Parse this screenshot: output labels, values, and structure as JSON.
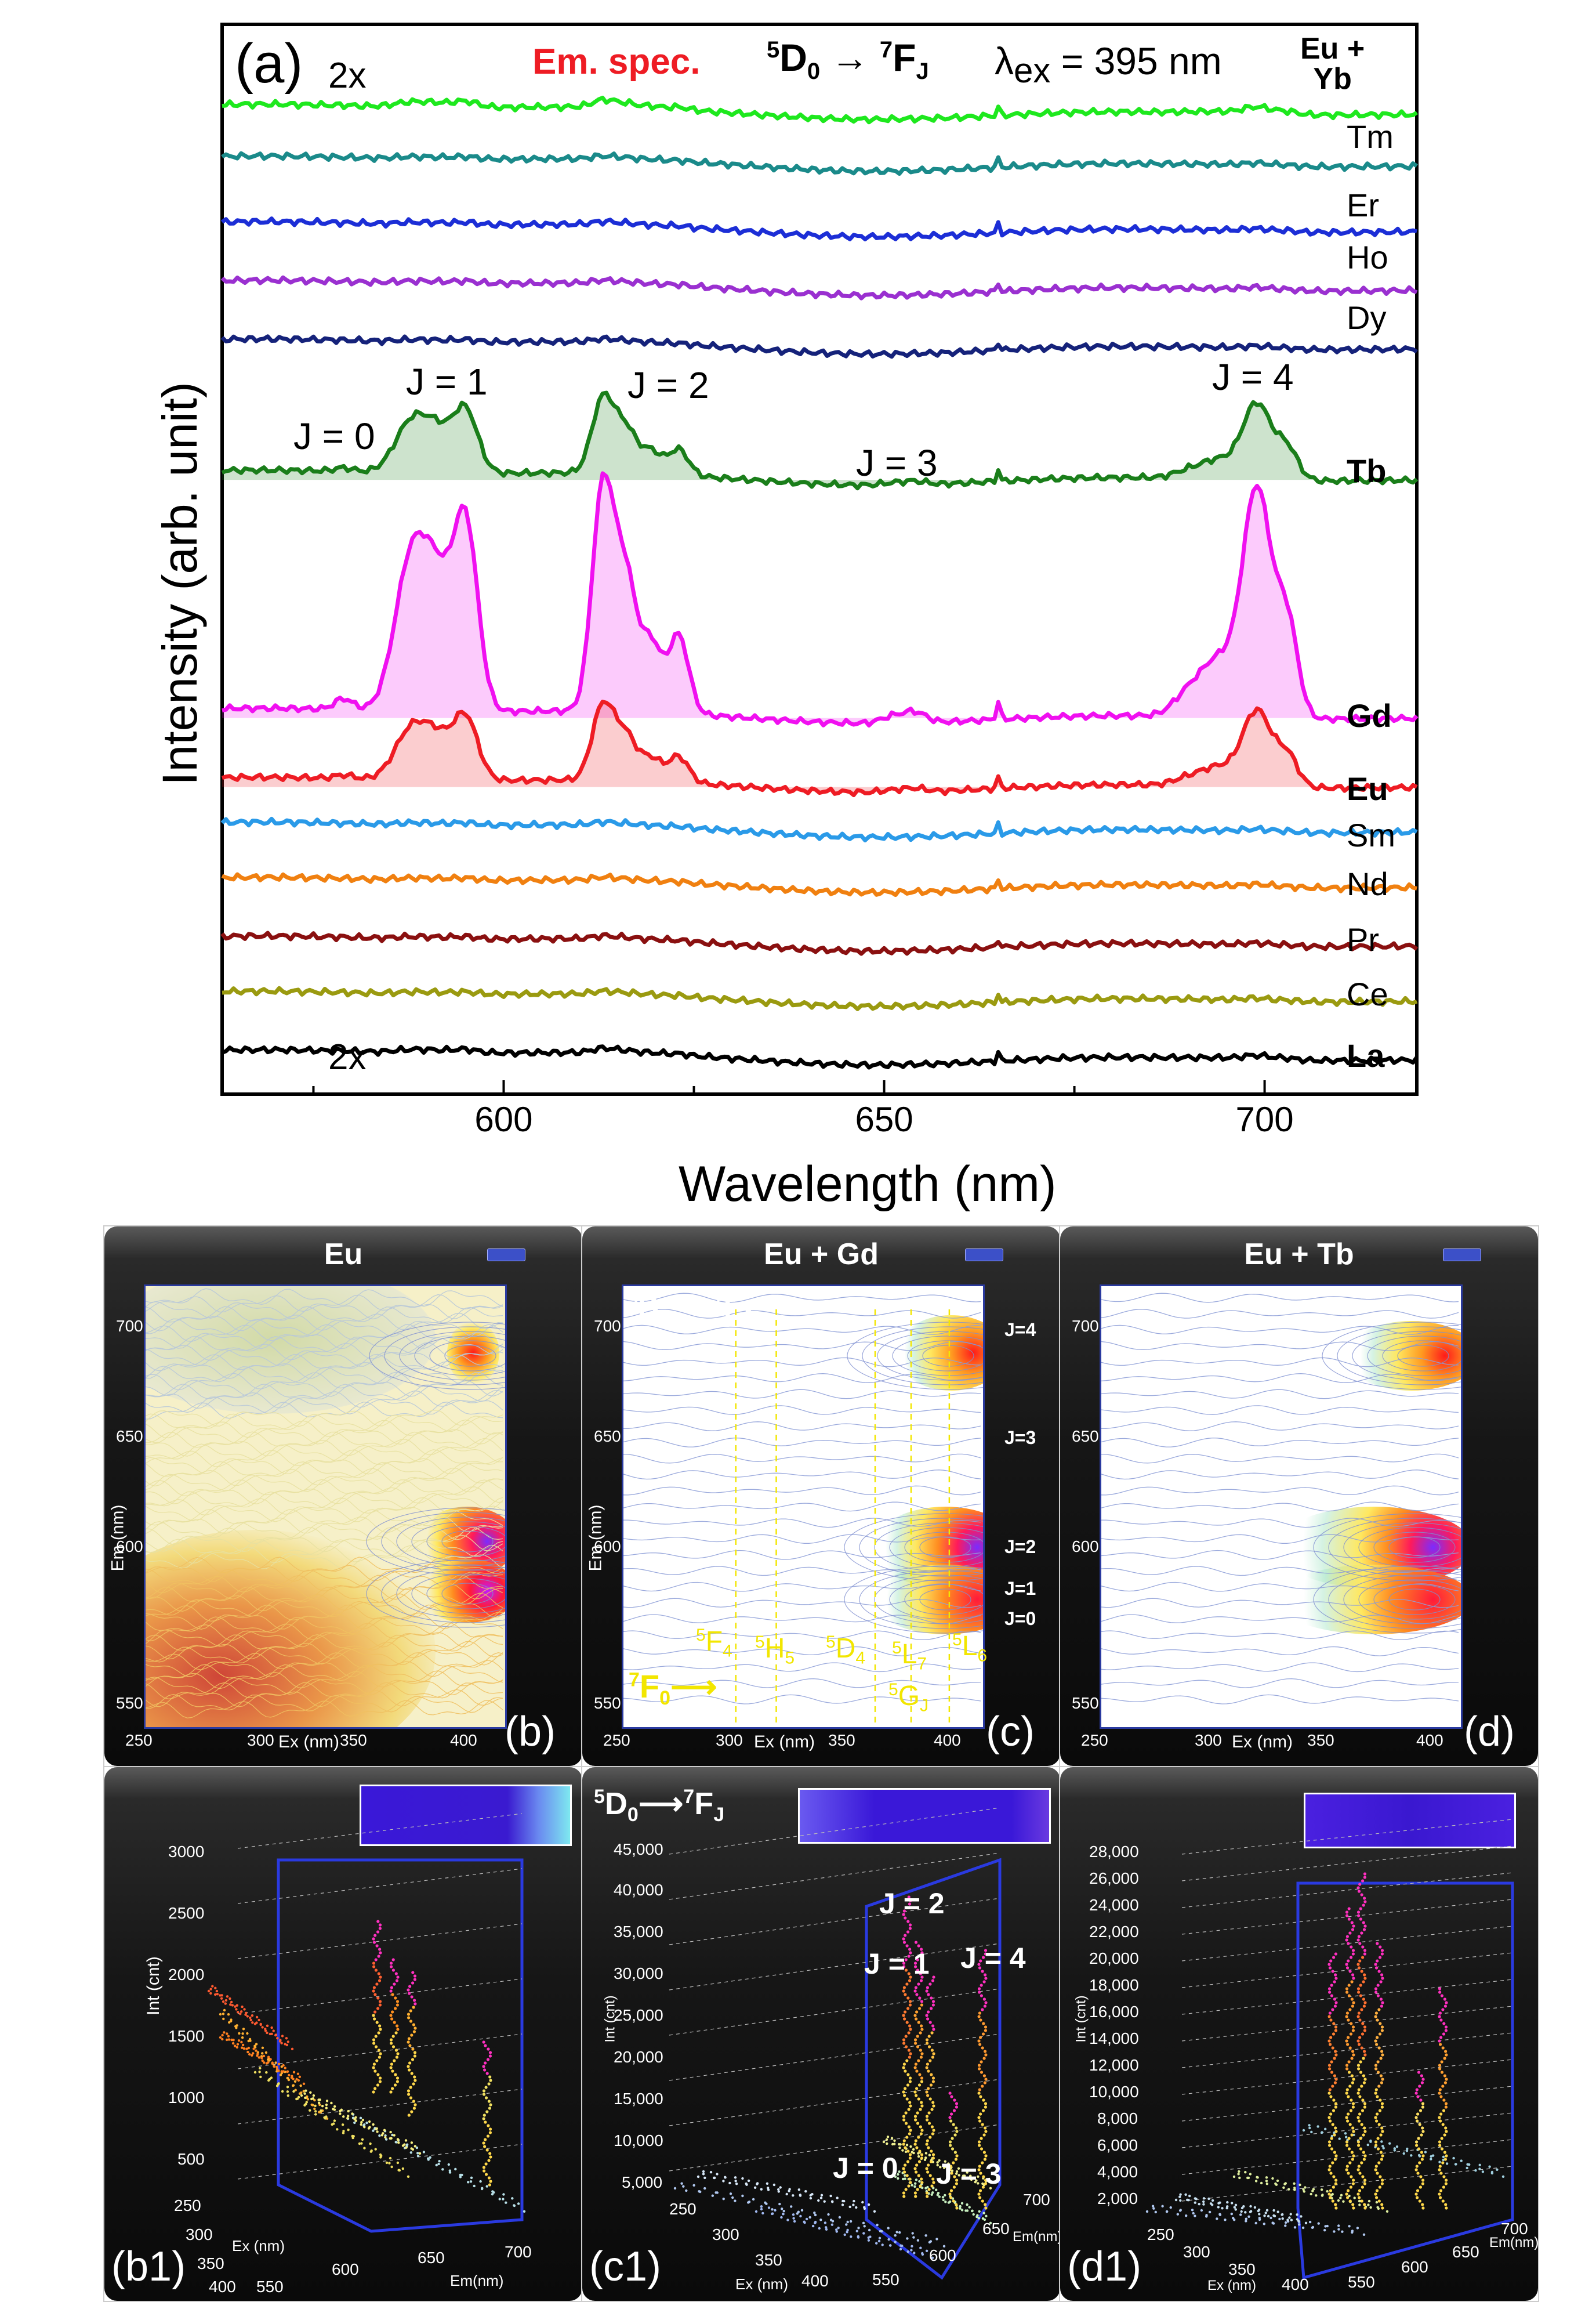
{
  "panel_a": {
    "label": "(a)",
    "em_spec": "Em. spec.",
    "transition": {
      "d": "5",
      "d_sub": "0",
      "f": "7",
      "f_sub": "J",
      "arrow": "→"
    },
    "lambda_label": "λ",
    "lambda_sub": "ex",
    "lambda_value": " = 395 nm",
    "ylabel": "Intensity (arb. unit)",
    "xlabel": "Wavelength (nm)",
    "xticks": [
      "600",
      "650",
      "700"
    ],
    "mark_2x_top": "2x",
    "mark_2x_bottom": "2x",
    "j_labels": [
      "J = 0",
      "J = 1",
      "J = 2",
      "J = 3",
      "J = 4"
    ],
    "colors": {
      "Yb": "#1ee81e",
      "Tm": "#1a8a8a",
      "Er": "#1c2ed6",
      "Ho": "#9a30d0",
      "Dy": "#15227a",
      "Tb": "#1a7e1a",
      "Gd": "#f010f0",
      "Eu": "#ee1c24",
      "Sm": "#2a9ae8",
      "Nd": "#f08010",
      "Pr": "#8a1010",
      "Ce": "#9a9a10",
      "La": "#000000"
    },
    "series_labels": [
      {
        "key": "Yb",
        "text1": "Eu +",
        "text2": "Yb",
        "bold": true
      },
      {
        "key": "Tm",
        "text1": "Tm",
        "text2": "",
        "bold": false
      },
      {
        "key": "Er",
        "text1": "Er",
        "text2": "",
        "bold": false
      },
      {
        "key": "Ho",
        "text1": "Ho",
        "text2": "",
        "bold": false
      },
      {
        "key": "Dy",
        "text1": "Dy",
        "text2": "",
        "bold": false
      },
      {
        "key": "Tb",
        "text1": "Tb",
        "text2": "",
        "bold": true
      },
      {
        "key": "Gd",
        "text1": "Gd",
        "text2": "",
        "bold": true
      },
      {
        "key": "Eu",
        "text1": "Eu",
        "text2": "",
        "bold": true
      },
      {
        "key": "Sm",
        "text1": "Sm",
        "text2": "",
        "bold": false
      },
      {
        "key": "Nd",
        "text1": "Nd",
        "text2": "",
        "bold": false
      },
      {
        "key": "Pr",
        "text1": "Pr",
        "text2": "",
        "bold": false
      },
      {
        "key": "Ce",
        "text1": "Ce",
        "text2": "",
        "bold": false
      },
      {
        "key": "La",
        "text1": "La",
        "text2": "",
        "bold": true
      }
    ]
  },
  "contour_panels": {
    "titles": [
      "Eu",
      "Eu + Gd",
      "Eu + Tb"
    ],
    "labels": [
      "(b)",
      "(c)",
      "(d)"
    ],
    "y_ticks": [
      "700",
      "650",
      "600",
      "550"
    ],
    "x_ticks": [
      "250",
      "300",
      "350",
      "400"
    ],
    "y_axis": "Em (nm)",
    "x_axis": "Ex (nm)",
    "c_transition": {
      "d": "5",
      "d_sub": "0",
      "f": "7",
      "f_sub": "J"
    },
    "c_j_labels": [
      "J=4",
      "J=3",
      "J=2",
      "J=1",
      "J=0"
    ],
    "c_levels": [
      {
        "sup": "5",
        "main": "F",
        "sub": "4"
      },
      {
        "sup": "5",
        "main": "H",
        "sub": "5"
      },
      {
        "sup": "5",
        "main": "D",
        "sub": "4"
      },
      {
        "sup": "5",
        "main": "L",
        "sub": "7"
      },
      {
        "sup": "5",
        "main": "L",
        "sub": "6"
      },
      {
        "sup": "5",
        "main": "G",
        "sub": "J"
      }
    ],
    "c_ground": {
      "sup": "7",
      "main": "F",
      "sub": "0"
    }
  },
  "surface_panels": {
    "labels": [
      "(b1)",
      "(c1)",
      "(d1)"
    ],
    "b1": {
      "z_axis": "Int (cnt)",
      "z_ticks": [
        "3000",
        "2500",
        "2000",
        "1500",
        "1000",
        "500"
      ],
      "ex_ticks": [
        "250",
        "300",
        "350",
        "400"
      ],
      "em_ticks": [
        "550",
        "600",
        "650",
        "700"
      ],
      "ex_axis": "Ex (nm)",
      "em_axis": "Em(nm)"
    },
    "c1": {
      "z_axis": "Int (cnt)",
      "z_ticks": [
        "45,000",
        "40,000",
        "35,000",
        "30,000",
        "25,000",
        "20,000",
        "15,000",
        "10,000",
        "5,000"
      ],
      "ex_ticks": [
        "250",
        "300",
        "350",
        "400"
      ],
      "em_ticks": [
        "550",
        "600",
        "650",
        "700"
      ],
      "ex_axis": "Ex (nm)",
      "em_axis": "Em(nm)",
      "j_labels": [
        "J = 2",
        "J = 1",
        "J = 4",
        "J = 0",
        "J = 3"
      ],
      "transition": {
        "d": "5",
        "d_sub": "0",
        "f": "7",
        "f_sub": "J"
      }
    },
    "d1": {
      "z_axis": "Int (cnt)",
      "z_ticks": [
        "28,000",
        "26,000",
        "24,000",
        "22,000",
        "20,000",
        "18,000",
        "16,000",
        "14,000",
        "12,000",
        "10,000",
        "8,000",
        "6,000",
        "4,000",
        "2,000"
      ],
      "ex_ticks": [
        "250",
        "300",
        "350",
        "400"
      ],
      "em_ticks": [
        "550",
        "600",
        "650",
        "700"
      ],
      "ex_axis": "Ex (nm)",
      "em_axis": "Em(nm)"
    }
  },
  "chart_data": [
    {
      "type": "line",
      "title": "Em. spec. 5D0 → 7FJ, λex = 395 nm",
      "xlabel": "Wavelength (nm)",
      "ylabel": "Intensity (arb. unit)",
      "xlim": [
        563,
        720
      ],
      "xticks": [
        600,
        650,
        700
      ],
      "grid": false,
      "peaks_nm": [
        579,
        588,
        595,
        613,
        616,
        619,
        623,
        651,
        654,
        665,
        690,
        694,
        699,
        703
      ],
      "sharp_line_nm": 665,
      "series": [
        {
          "name": "Eu + Yb",
          "key": "Yb",
          "offset": 14.3,
          "scale": 0.1,
          "note": "2x"
        },
        {
          "name": "Tm",
          "key": "Tm",
          "offset": 13.55,
          "scale": 0.04
        },
        {
          "name": "Er",
          "key": "Er",
          "offset": 12.6,
          "scale": 0.04
        },
        {
          "name": "Ho",
          "key": "Ho",
          "offset": 11.75,
          "scale": 0.04
        },
        {
          "name": "Dy",
          "key": "Dy",
          "offset": 10.9,
          "scale": 0.04
        },
        {
          "name": "Tb",
          "key": "Tb",
          "offset": 9.0,
          "scale": 1.05
        },
        {
          "name": "Gd",
          "key": "Gd",
          "offset": 5.55,
          "scale": 3.15
        },
        {
          "name": "Eu",
          "key": "Eu",
          "offset": 4.55,
          "scale": 1.05
        },
        {
          "name": "Sm",
          "key": "Sm",
          "offset": 3.9,
          "scale": 0.04
        },
        {
          "name": "Nd",
          "key": "Nd",
          "offset": 3.1,
          "scale": 0.04
        },
        {
          "name": "Pr",
          "key": "Pr",
          "offset": 2.25,
          "scale": 0.04
        },
        {
          "name": "Ce",
          "key": "Ce",
          "offset": 1.45,
          "scale": 0.04
        },
        {
          "name": "La",
          "key": "La",
          "offset": 0.6,
          "scale": 0.06,
          "note": "2x"
        }
      ],
      "ylim": [
        0,
        15.5
      ]
    },
    {
      "type": "heatmap",
      "title": "Eu",
      "xlabel": "Ex (nm)",
      "ylabel": "Em (nm)",
      "xlim": [
        250,
        410
      ],
      "ylim": [
        540,
        715
      ],
      "hotspots": [
        {
          "ex": 395,
          "em": 700
        },
        {
          "ex": 395,
          "em": 612
        },
        {
          "ex": 395,
          "em": 592
        },
        {
          "ex": 385,
          "em": 612
        },
        {
          "ex": 385,
          "em": 592
        }
      ]
    },
    {
      "type": "heatmap",
      "title": "Eu + Gd",
      "xlabel": "Ex (nm)",
      "ylabel": "Em (nm)",
      "xlim": [
        250,
        410
      ],
      "ylim": [
        540,
        715
      ],
      "level_lines_ex": [
        300,
        318,
        362,
        378,
        395
      ],
      "hotspots": [
        {
          "ex": 395,
          "em": 700
        },
        {
          "ex": 395,
          "em": 612
        },
        {
          "ex": 395,
          "em": 592
        },
        {
          "ex": 380,
          "em": 612
        },
        {
          "ex": 380,
          "em": 592
        }
      ]
    },
    {
      "type": "heatmap",
      "title": "Eu + Tb",
      "xlabel": "Ex (nm)",
      "ylabel": "Em (nm)",
      "xlim": [
        250,
        410
      ],
      "ylim": [
        540,
        715
      ],
      "hotspots": [
        {
          "ex": 393,
          "em": 700
        },
        {
          "ex": 393,
          "em": 612
        },
        {
          "ex": 393,
          "em": 592
        },
        {
          "ex": 378,
          "em": 612
        },
        {
          "ex": 378,
          "em": 592
        }
      ]
    }
  ]
}
